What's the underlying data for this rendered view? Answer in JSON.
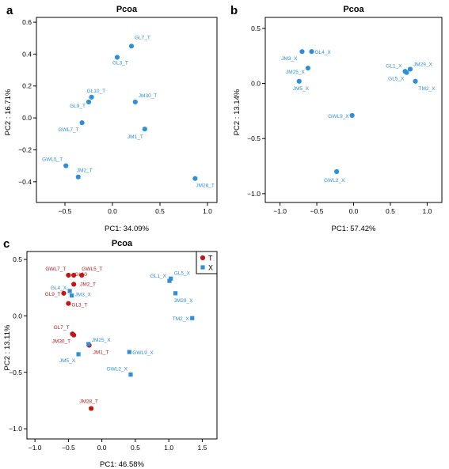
{
  "colors": {
    "blue": "#2f8fd8",
    "red": "#c01818",
    "axis": "#000000"
  },
  "chart_data": [
    {
      "panel": "a",
      "type": "scatter",
      "title": "Pcoa",
      "xlabel": "PC1: 34.09%",
      "ylabel": "PC2 : 16.71%",
      "xlim": [
        -0.8,
        1.1
      ],
      "ylim": [
        -0.53,
        0.63
      ],
      "xticks": [
        -0.5,
        0.0,
        0.5,
        1.0
      ],
      "xtick_labels": [
        "−0.5",
        "0.0",
        "0.5",
        "1.0"
      ],
      "yticks": [
        -0.4,
        -0.2,
        0.0,
        0.2,
        0.4,
        0.6
      ],
      "ytick_labels": [
        "−0.4",
        "−0.2",
        "0.0",
        "0.2",
        "0.4",
        "0.6"
      ],
      "series": [
        {
          "marker": "circle",
          "color": "#2f8fd8",
          "points": [
            {
              "label": "GL7_T",
              "x": 0.2,
              "y": 0.45
            },
            {
              "label": "GL3_T",
              "x": 0.05,
              "y": 0.38
            },
            {
              "label": "GL10_T",
              "x": -0.22,
              "y": 0.13
            },
            {
              "label": "GL9_T",
              "x": -0.25,
              "y": 0.1
            },
            {
              "label": "JM30_T",
              "x": 0.24,
              "y": 0.1
            },
            {
              "label": "GWL7_T",
              "x": -0.32,
              "y": -0.03
            },
            {
              "label": "JM1_T",
              "x": 0.34,
              "y": -0.07
            },
            {
              "label": "GWL5_T",
              "x": -0.49,
              "y": -0.3
            },
            {
              "label": "JM2_T",
              "x": -0.36,
              "y": -0.37
            },
            {
              "label": "JM28_T",
              "x": 0.87,
              "y": -0.38
            }
          ]
        }
      ]
    },
    {
      "panel": "b",
      "type": "scatter",
      "title": "Pcoa",
      "xlabel": "PC1: 57.42%",
      "ylabel": "PC2 : 13.14%",
      "xlim": [
        -1.2,
        1.2
      ],
      "ylim": [
        -1.08,
        0.6
      ],
      "xticks": [
        -1.0,
        -0.5,
        0.0,
        0.5,
        1.0
      ],
      "xtick_labels": [
        "−1.0",
        "−0.5",
        "0.0",
        "0.5",
        "1.0"
      ],
      "yticks": [
        -1.0,
        -0.5,
        0.0,
        0.5
      ],
      "ytick_labels": [
        "−1.0",
        "−0.5",
        "0.0",
        "0.5"
      ],
      "series": [
        {
          "marker": "circle",
          "color": "#2f8fd8",
          "points": [
            {
              "label": "JM3_X",
              "x": -0.7,
              "y": 0.29
            },
            {
              "label": "GL4_X",
              "x": -0.57,
              "y": 0.29
            },
            {
              "label": "JM25_X",
              "x": -0.62,
              "y": 0.14
            },
            {
              "label": "JM5_X",
              "x": -0.74,
              "y": 0.02
            },
            {
              "label": "GL1_X",
              "x": 0.7,
              "y": 0.11
            },
            {
              "label": "JM29_X",
              "x": 0.77,
              "y": 0.13
            },
            {
              "label": "GL5_X",
              "x": 0.72,
              "y": 0.1
            },
            {
              "label": "TM2_X",
              "x": 0.84,
              "y": 0.02
            },
            {
              "label": "GWL9_X",
              "x": -0.02,
              "y": -0.29
            },
            {
              "label": "GWL2_X",
              "x": -0.23,
              "y": -0.8
            }
          ]
        }
      ]
    },
    {
      "panel": "c",
      "type": "scatter",
      "title": "Pcoa",
      "xlabel": "PC1: 46.58%",
      "ylabel": "PC2 : 13.11%",
      "xlim": [
        -1.12,
        1.72
      ],
      "ylim": [
        -1.09,
        0.57
      ],
      "xticks": [
        -1.0,
        -0.5,
        0.0,
        0.5,
        1.0,
        1.5
      ],
      "xtick_labels": [
        "−1.0",
        "−0.5",
        "0.0",
        "0.5",
        "1.0",
        "1.5"
      ],
      "yticks": [
        -1.0,
        -0.5,
        0.0,
        0.5
      ],
      "ytick_labels": [
        "−1.0",
        "−0.5",
        "0.0",
        "0.5"
      ],
      "legend": {
        "position": "top-right",
        "entries": [
          "T",
          "X"
        ]
      },
      "series": [
        {
          "name": "T",
          "marker": "circle",
          "color": "#c01818",
          "points": [
            {
              "label": "GWL7_T",
              "x": -0.5,
              "y": 0.36
            },
            {
              "label": "GWL5_T",
              "x": -0.3,
              "y": 0.36
            },
            {
              "label": "GL10",
              "x": -0.42,
              "y": 0.36
            },
            {
              "label": "JM2_T",
              "x": -0.42,
              "y": 0.28
            },
            {
              "label": "GL9_T",
              "x": -0.57,
              "y": 0.2
            },
            {
              "label": "GL3_T",
              "x": -0.5,
              "y": 0.11
            },
            {
              "label": "GL7_T",
              "x": -0.44,
              "y": -0.16
            },
            {
              "label": "JM30_T",
              "x": -0.42,
              "y": -0.17
            },
            {
              "label": "JM1_T",
              "x": -0.19,
              "y": -0.26
            },
            {
              "label": "JM28_T",
              "x": -0.16,
              "y": -0.82
            }
          ]
        },
        {
          "name": "X",
          "marker": "square",
          "color": "#2f8fd8",
          "points": [
            {
              "label": "GL1_X",
              "x": 1.01,
              "y": 0.31
            },
            {
              "label": "GL5_X",
              "x": 1.03,
              "y": 0.33
            },
            {
              "label": "GL4_X",
              "x": -0.48,
              "y": 0.22
            },
            {
              "label": "JM3_X",
              "x": -0.45,
              "y": 0.18
            },
            {
              "label": "JM29_X",
              "x": 1.1,
              "y": 0.2
            },
            {
              "label": "TM2_X",
              "x": 1.35,
              "y": -0.02
            },
            {
              "label": "JM25_X",
              "x": -0.2,
              "y": -0.25
            },
            {
              "label": "GWL9_X",
              "x": 0.41,
              "y": -0.32
            },
            {
              "label": "JM5_X",
              "x": -0.35,
              "y": -0.34
            },
            {
              "label": "GWL2_X",
              "x": 0.43,
              "y": -0.52
            }
          ]
        }
      ]
    }
  ]
}
